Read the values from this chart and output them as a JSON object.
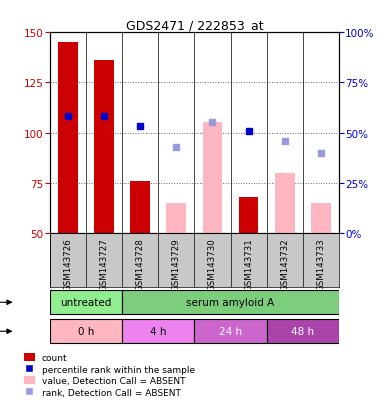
{
  "title": "GDS2471 / 222853_at",
  "samples": [
    "GSM143726",
    "GSM143727",
    "GSM143728",
    "GSM143729",
    "GSM143730",
    "GSM143731",
    "GSM143732",
    "GSM143733"
  ],
  "count_values": [
    145,
    136,
    76,
    null,
    null,
    68,
    null,
    null
  ],
  "count_absent_values": [
    null,
    null,
    null,
    65,
    105,
    null,
    80,
    65
  ],
  "percentile_rank_values": [
    108,
    108,
    103,
    null,
    null,
    101,
    null,
    null
  ],
  "percentile_rank_absent_values": [
    null,
    null,
    null,
    93,
    105,
    null,
    96,
    90
  ],
  "ylim_left": [
    50,
    150
  ],
  "ylim_right": [
    0,
    100
  ],
  "yticks_left": [
    50,
    75,
    100,
    125,
    150
  ],
  "yticks_right": [
    0,
    25,
    50,
    75,
    100
  ],
  "agent_groups": [
    {
      "label": "untreated",
      "start": 0,
      "end": 2,
      "color": "#90EE90"
    },
    {
      "label": "serum amyloid A",
      "start": 2,
      "end": 8,
      "color": "#7CCD7C"
    }
  ],
  "time_groups": [
    {
      "label": "0 h",
      "start": 0,
      "end": 2,
      "color": "#FFB6C1"
    },
    {
      "label": "4 h",
      "start": 2,
      "end": 4,
      "color": "#EE82EE"
    },
    {
      "label": "24 h",
      "start": 4,
      "end": 6,
      "color": "#CC66CC"
    },
    {
      "label": "48 h",
      "start": 6,
      "end": 8,
      "color": "#AA44AA"
    }
  ],
  "count_color": "#CC0000",
  "count_absent_color": "#FFB6C1",
  "rank_color": "#0000CC",
  "rank_absent_color": "#9999DD",
  "bg_color": "#C8C8C8",
  "left_tick_color": "#CC0000",
  "right_tick_color": "#0000CC",
  "grid_color": "#666666"
}
